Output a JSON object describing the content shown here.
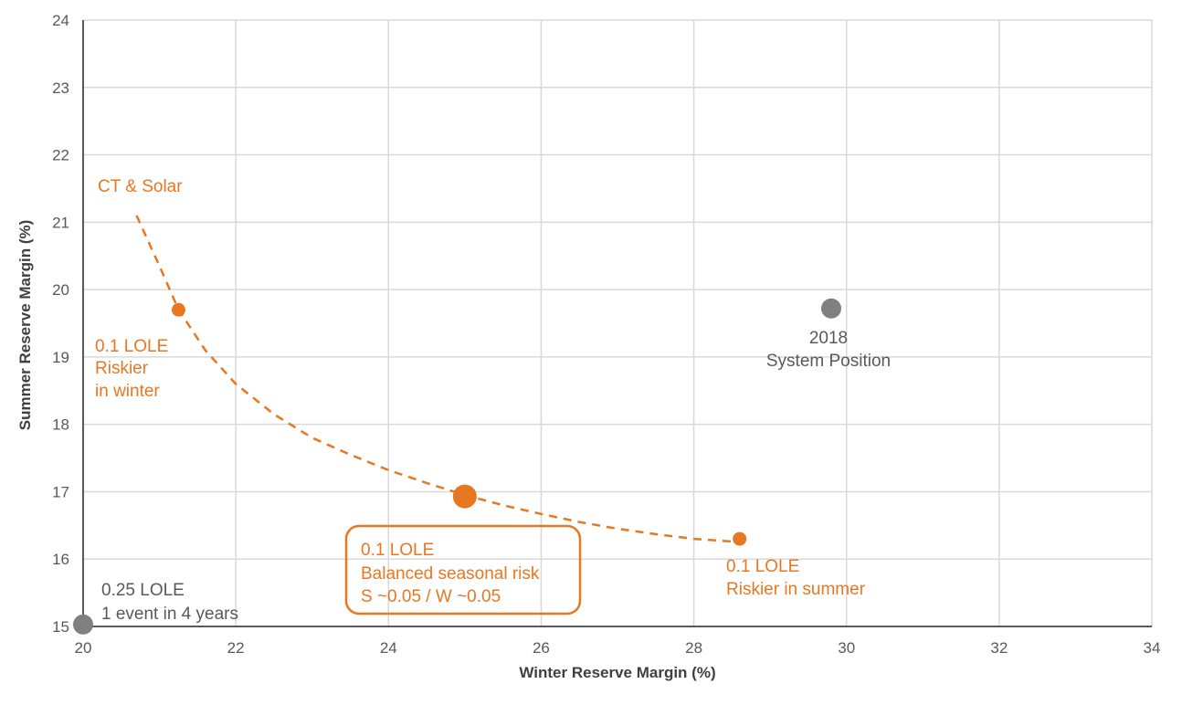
{
  "chart_data": {
    "type": "scatter",
    "xlabel": "Winter Reserve Margin (%)",
    "ylabel": "Summer Reserve Margin (%)",
    "xlim": [
      20,
      34
    ],
    "ylim": [
      15,
      24
    ],
    "x_ticks": [
      "20",
      "22",
      "24",
      "26",
      "28",
      "30",
      "32",
      "34"
    ],
    "y_ticks": [
      "15",
      "16",
      "17",
      "18",
      "19",
      "20",
      "21",
      "22",
      "23",
      "24"
    ],
    "grid": true,
    "curve": {
      "style": "dashed",
      "color": "#E87722",
      "points": [
        [
          20.7,
          21.1
        ],
        [
          21.0,
          20.35
        ],
        [
          21.25,
          19.7
        ],
        [
          21.6,
          19.1
        ],
        [
          22.0,
          18.6
        ],
        [
          22.5,
          18.15
        ],
        [
          23.0,
          17.8
        ],
        [
          23.5,
          17.55
        ],
        [
          24.0,
          17.32
        ],
        [
          24.5,
          17.13
        ],
        [
          25.0,
          16.95
        ],
        [
          25.5,
          16.8
        ],
        [
          26.0,
          16.67
        ],
        [
          26.5,
          16.55
        ],
        [
          27.0,
          16.45
        ],
        [
          27.5,
          16.37
        ],
        [
          28.0,
          16.3
        ],
        [
          28.5,
          16.26
        ]
      ]
    },
    "points": [
      {
        "x": 21.25,
        "y": 19.7,
        "size": "small",
        "color": "#E87722"
      },
      {
        "x": 25.0,
        "y": 16.93,
        "size": "large",
        "color": "#E87722"
      },
      {
        "x": 28.6,
        "y": 16.3,
        "size": "small",
        "color": "#E87722"
      },
      {
        "x": 29.8,
        "y": 19.72,
        "size": "medium",
        "color": "#808080"
      },
      {
        "x": 20.0,
        "y": 15.03,
        "size": "medium",
        "color": "#808080"
      }
    ],
    "annotations": {
      "ct_solar": "CT & Solar",
      "winter_risk": [
        "0.1 LOLE",
        "Riskier",
        "in winter"
      ],
      "balanced": [
        "0.1 LOLE",
        "Balanced seasonal risk",
        "S ~0.05 / W ~0.05"
      ],
      "summer_risk": [
        "0.1 LOLE",
        "Riskier in summer"
      ],
      "system_position": [
        "2018",
        "System Position"
      ],
      "base": [
        "0.25 LOLE",
        "1 event in 4 years"
      ]
    },
    "colors": {
      "orange": "#E87722",
      "gray_point": "#808080",
      "gray_text": "#595959",
      "grid": "#D9D9D9",
      "axis": "#595959"
    }
  }
}
